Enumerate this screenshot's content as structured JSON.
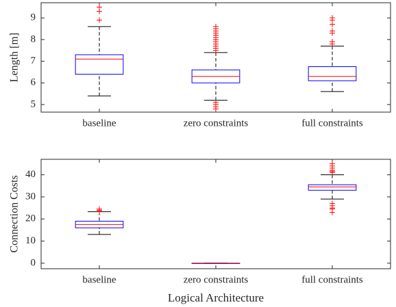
{
  "chart_data": [
    {
      "type": "box",
      "ylabel": "Length [m]",
      "categories": [
        "baseline",
        "zero constraints",
        "full constraints"
      ],
      "ylim": [
        4.65,
        9.7
      ],
      "yticks": [
        5,
        6,
        7,
        8,
        9
      ],
      "box_color": "#0000ff",
      "median_color": "#ff0000",
      "whisker_color": "#000000",
      "outlier_color": "#ff0000",
      "boxes": [
        {
          "whisker_low": 5.4,
          "q1": 6.4,
          "median": 7.1,
          "q3": 7.3,
          "whisker_high": 8.6,
          "outliers": [
            8.9,
            9.3,
            9.5
          ]
        },
        {
          "whisker_low": 5.2,
          "q1": 6.0,
          "median": 6.3,
          "q3": 6.6,
          "whisker_high": 7.4,
          "outliers": [
            4.8,
            4.9,
            5.0,
            5.1,
            7.5,
            7.6,
            7.7,
            7.8,
            7.9,
            8.0,
            8.1,
            8.2,
            8.3,
            8.4,
            8.5,
            8.6
          ]
        },
        {
          "whisker_low": 5.6,
          "q1": 6.1,
          "median": 6.3,
          "q3": 6.75,
          "whisker_high": 7.7,
          "outliers": [
            7.8,
            7.9,
            8.3,
            8.4,
            8.7,
            8.9,
            9.0
          ]
        }
      ]
    },
    {
      "type": "box",
      "ylabel": "Connection Costs",
      "xlabel": "Logical Architecture",
      "categories": [
        "baseline",
        "zero constraints",
        "full constraints"
      ],
      "ylim": [
        -2.5,
        47
      ],
      "yticks": [
        0,
        10,
        20,
        30,
        40
      ],
      "box_color": "#0000ff",
      "median_color": "#ff0000",
      "whisker_color": "#000000",
      "outlier_color": "#ff0000",
      "boxes": [
        {
          "whisker_low": 13,
          "q1": 16,
          "median": 17.5,
          "q3": 19,
          "whisker_high": 23.3,
          "outliers": [
            23.5,
            24,
            24.5
          ]
        },
        {
          "whisker_low": 0,
          "q1": 0,
          "median": 0,
          "q3": 0,
          "whisker_high": 0,
          "outliers": []
        },
        {
          "whisker_low": 29,
          "q1": 33,
          "median": 34.5,
          "q3": 35.5,
          "whisker_high": 40,
          "outliers": [
            23,
            24.5,
            25,
            26,
            27,
            41,
            41.5,
            42,
            43,
            44,
            45
          ]
        }
      ]
    }
  ]
}
